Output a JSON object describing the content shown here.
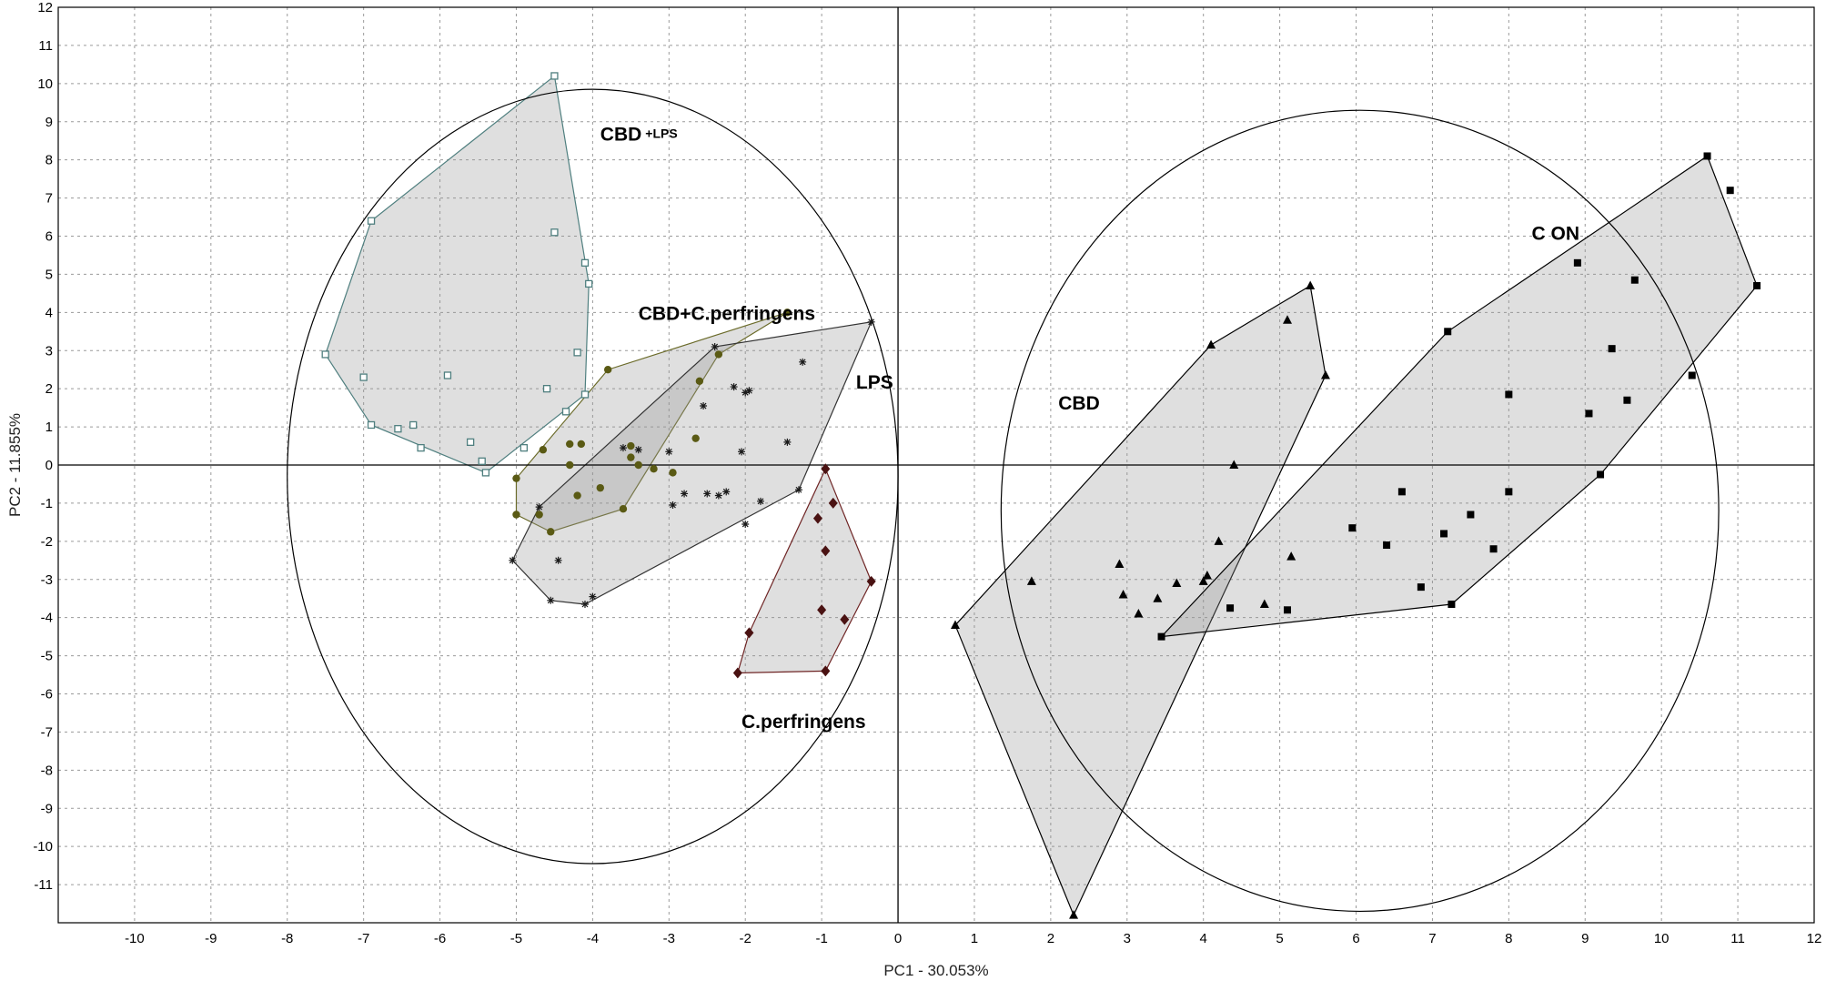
{
  "chart_data": {
    "type": "scatter",
    "xlabel": "PC1 - 30.053%",
    "ylabel": "PC2 - 11.855%",
    "xlim": [
      -11,
      12
    ],
    "ylim": [
      -12,
      12
    ],
    "grid": true,
    "x_ticks": [
      -10,
      -9,
      -8,
      -7,
      -6,
      -5,
      -4,
      -3,
      -2,
      -1,
      0,
      1,
      2,
      3,
      4,
      5,
      6,
      7,
      8,
      9,
      10,
      11,
      12
    ],
    "y_ticks": [
      -11,
      -10,
      -9,
      -8,
      -7,
      -6,
      -5,
      -4,
      -3,
      -2,
      -1,
      0,
      1,
      2,
      3,
      4,
      5,
      6,
      7,
      8,
      9,
      10,
      11,
      12
    ],
    "labels": [
      {
        "text": "CBD",
        "suffix": "+LPS",
        "x": -3.9,
        "y": 8.5
      },
      {
        "text": "CBD+C.perfringens",
        "x": -3.4,
        "y": 3.8
      },
      {
        "text": "LPS",
        "x": -0.55,
        "y": 2.0
      },
      {
        "text": "C.perfringens",
        "x": -2.05,
        "y": -6.9
      },
      {
        "text": "CBD",
        "x": 2.1,
        "y": 1.45
      },
      {
        "text": "C ON",
        "x": 8.3,
        "y": 5.9
      }
    ],
    "ellipses": [
      {
        "cx": -4.0,
        "cy": -0.3,
        "rx": 4.0,
        "ry": 10.15
      },
      {
        "cx": 6.05,
        "cy": -1.2,
        "rx": 4.7,
        "ry": 10.5
      }
    ],
    "series": [
      {
        "name": "CBD+LPS",
        "marker": "open-square",
        "color": "#4f7f7f",
        "hull_stroke": "#4f7f7f",
        "points": [
          [
            -4.5,
            10.2
          ],
          [
            -6.9,
            6.4
          ],
          [
            -4.5,
            6.1
          ],
          [
            -4.1,
            5.3
          ],
          [
            -4.05,
            4.75
          ],
          [
            -7.5,
            2.9
          ],
          [
            -4.2,
            2.95
          ],
          [
            -7.0,
            2.3
          ],
          [
            -5.9,
            2.35
          ],
          [
            -4.6,
            2.0
          ],
          [
            -4.1,
            1.85
          ],
          [
            -4.35,
            1.4
          ],
          [
            -6.9,
            1.05
          ],
          [
            -6.55,
            0.95
          ],
          [
            -6.35,
            1.05
          ],
          [
            -6.25,
            0.45
          ],
          [
            -5.6,
            0.6
          ],
          [
            -4.9,
            0.45
          ],
          [
            -5.45,
            0.1
          ],
          [
            -5.4,
            -0.2
          ]
        ],
        "hull": [
          [
            -4.5,
            10.2
          ],
          [
            -4.05,
            4.75
          ],
          [
            -4.1,
            1.85
          ],
          [
            -5.4,
            -0.2
          ],
          [
            -6.9,
            1.05
          ],
          [
            -7.5,
            2.9
          ],
          [
            -6.9,
            6.4
          ]
        ]
      },
      {
        "name": "CBD+C.perfringens",
        "marker": "filled-circle",
        "color": "#5a5a14",
        "hull_stroke": "#6b6b2a",
        "points": [
          [
            -1.45,
            4.0
          ],
          [
            -3.8,
            2.5
          ],
          [
            -2.35,
            2.9
          ],
          [
            -2.6,
            2.2
          ],
          [
            -4.65,
            0.4
          ],
          [
            -4.3,
            0.55
          ],
          [
            -4.15,
            0.55
          ],
          [
            -3.5,
            0.5
          ],
          [
            -3.5,
            0.2
          ],
          [
            -2.65,
            0.7
          ],
          [
            -4.3,
            0.0
          ],
          [
            -3.4,
            0.0
          ],
          [
            -3.2,
            -0.1
          ],
          [
            -2.95,
            -0.2
          ],
          [
            -5.0,
            -0.35
          ],
          [
            -4.2,
            -0.8
          ],
          [
            -3.9,
            -0.6
          ],
          [
            -5.0,
            -1.3
          ],
          [
            -4.7,
            -1.3
          ],
          [
            -3.6,
            -1.15
          ],
          [
            -4.55,
            -1.75
          ]
        ],
        "hull": [
          [
            -1.45,
            4.0
          ],
          [
            -2.35,
            2.9
          ],
          [
            -3.6,
            -1.15
          ],
          [
            -4.55,
            -1.75
          ],
          [
            -5.0,
            -1.3
          ],
          [
            -5.0,
            -0.35
          ],
          [
            -3.8,
            2.5
          ]
        ]
      },
      {
        "name": "LPS",
        "marker": "asterisk",
        "color": "#1a1a1a",
        "hull_stroke": "#333333",
        "points": [
          [
            -0.35,
            3.75
          ],
          [
            -2.4,
            3.1
          ],
          [
            -1.25,
            2.7
          ],
          [
            -2.15,
            2.05
          ],
          [
            -1.95,
            1.95
          ],
          [
            -2.55,
            1.55
          ],
          [
            -2.0,
            1.9
          ],
          [
            -1.45,
            0.6
          ],
          [
            -2.05,
            0.35
          ],
          [
            -3.0,
            0.35
          ],
          [
            -3.4,
            0.4
          ],
          [
            -3.6,
            0.45
          ],
          [
            -2.25,
            -0.7
          ],
          [
            -2.35,
            -0.8
          ],
          [
            -2.8,
            -0.75
          ],
          [
            -2.5,
            -0.75
          ],
          [
            -1.8,
            -0.95
          ],
          [
            -2.95,
            -1.05
          ],
          [
            -4.7,
            -1.1
          ],
          [
            -2.0,
            -1.55
          ],
          [
            -1.3,
            -0.65
          ],
          [
            -4.45,
            -2.5
          ],
          [
            -5.05,
            -2.5
          ],
          [
            -4.0,
            -3.45
          ],
          [
            -4.55,
            -3.55
          ],
          [
            -4.1,
            -3.65
          ]
        ],
        "hull": [
          [
            -0.35,
            3.75
          ],
          [
            -1.3,
            -0.65
          ],
          [
            -4.1,
            -3.65
          ],
          [
            -4.55,
            -3.55
          ],
          [
            -5.05,
            -2.5
          ],
          [
            -4.7,
            -1.1
          ],
          [
            -2.4,
            3.1
          ]
        ]
      },
      {
        "name": "C.perfringens",
        "marker": "filled-diamond",
        "color": "#4a1212",
        "hull_stroke": "#6e2424",
        "points": [
          [
            -0.95,
            -0.1
          ],
          [
            -0.85,
            -1.0
          ],
          [
            -1.05,
            -1.4
          ],
          [
            -0.95,
            -2.25
          ],
          [
            -0.35,
            -3.05
          ],
          [
            -1.0,
            -3.8
          ],
          [
            -0.7,
            -4.05
          ],
          [
            -1.95,
            -4.4
          ],
          [
            -2.1,
            -5.45
          ],
          [
            -0.95,
            -5.4
          ]
        ],
        "hull": [
          [
            -0.95,
            -0.1
          ],
          [
            -0.35,
            -3.05
          ],
          [
            -0.95,
            -5.4
          ],
          [
            -2.1,
            -5.45
          ],
          [
            -1.95,
            -4.4
          ]
        ]
      },
      {
        "name": "CBD",
        "marker": "filled-triangle",
        "color": "#000000",
        "hull_stroke": "#000000",
        "points": [
          [
            5.4,
            4.7
          ],
          [
            4.1,
            3.15
          ],
          [
            5.1,
            3.8
          ],
          [
            5.6,
            2.35
          ],
          [
            4.4,
            0.0
          ],
          [
            4.2,
            -2.0
          ],
          [
            5.15,
            -2.4
          ],
          [
            2.9,
            -2.6
          ],
          [
            1.75,
            -3.05
          ],
          [
            4.05,
            -2.9
          ],
          [
            4.0,
            -3.05
          ],
          [
            3.65,
            -3.1
          ],
          [
            2.95,
            -3.4
          ],
          [
            3.4,
            -3.5
          ],
          [
            4.8,
            -3.65
          ],
          [
            3.15,
            -3.9
          ],
          [
            0.75,
            -4.2
          ],
          [
            2.3,
            -11.8
          ]
        ],
        "hull": [
          [
            5.4,
            4.7
          ],
          [
            5.6,
            2.35
          ],
          [
            2.3,
            -11.8
          ],
          [
            0.75,
            -4.2
          ],
          [
            4.1,
            3.15
          ]
        ]
      },
      {
        "name": "CON",
        "marker": "filled-square",
        "color": "#000000",
        "hull_stroke": "#000000",
        "points": [
          [
            10.6,
            8.1
          ],
          [
            10.9,
            7.2
          ],
          [
            11.25,
            4.7
          ],
          [
            8.9,
            5.3
          ],
          [
            9.65,
            4.85
          ],
          [
            9.35,
            3.05
          ],
          [
            7.2,
            3.5
          ],
          [
            10.4,
            2.35
          ],
          [
            9.05,
            1.35
          ],
          [
            9.55,
            1.7
          ],
          [
            8.0,
            1.85
          ],
          [
            9.2,
            -0.25
          ],
          [
            6.6,
            -0.7
          ],
          [
            8.0,
            -0.7
          ],
          [
            7.5,
            -1.3
          ],
          [
            5.95,
            -1.65
          ],
          [
            7.15,
            -1.8
          ],
          [
            6.4,
            -2.1
          ],
          [
            7.8,
            -2.2
          ],
          [
            6.85,
            -3.2
          ],
          [
            4.35,
            -3.75
          ],
          [
            5.1,
            -3.8
          ],
          [
            7.25,
            -3.65
          ],
          [
            3.45,
            -4.5
          ]
        ],
        "hull": [
          [
            10.6,
            8.1
          ],
          [
            11.25,
            4.7
          ],
          [
            9.2,
            -0.25
          ],
          [
            7.25,
            -3.65
          ],
          [
            3.45,
            -4.5
          ],
          [
            7.2,
            3.5
          ]
        ]
      }
    ]
  }
}
